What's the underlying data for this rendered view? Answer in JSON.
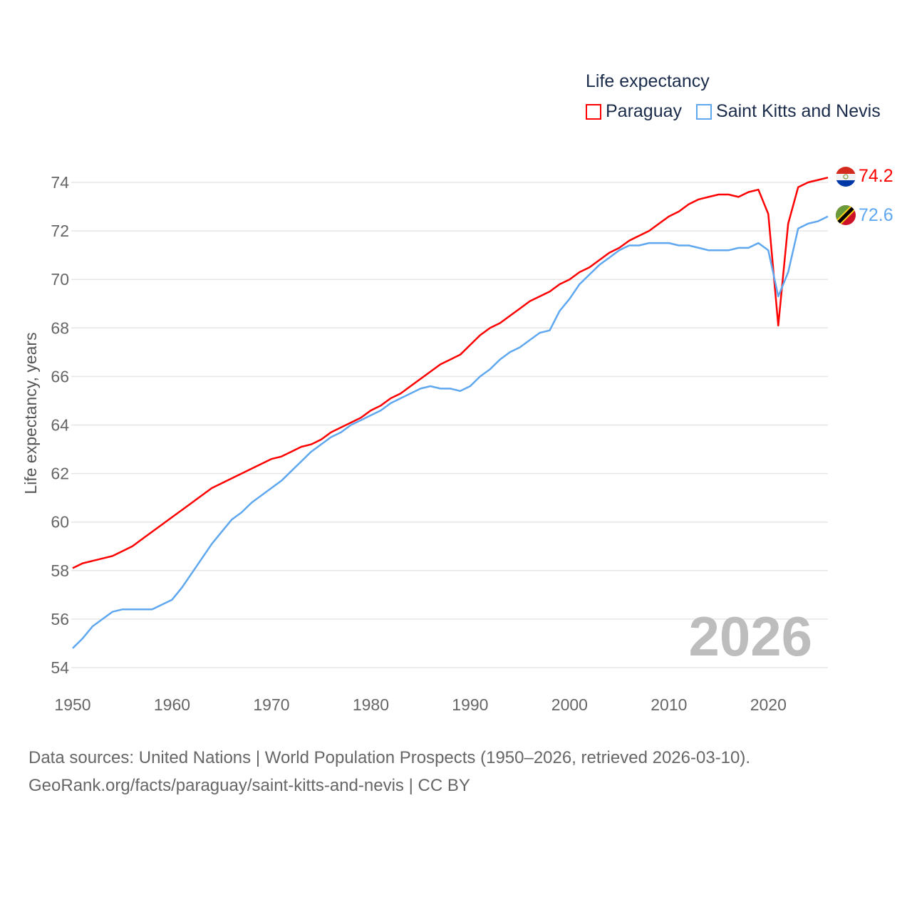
{
  "chart_data": {
    "type": "line",
    "title": "Life expectancy",
    "ylabel": "Life expectancy, years",
    "xlabel": "",
    "xlim": [
      1950,
      2026
    ],
    "ylim": [
      54,
      74
    ],
    "x_ticks": [
      1950,
      1960,
      1970,
      1980,
      1990,
      2000,
      2010,
      2020
    ],
    "y_ticks": [
      54,
      56,
      58,
      60,
      62,
      64,
      66,
      68,
      70,
      72,
      74
    ],
    "grid": true,
    "legend_position": "top-right",
    "year_watermark": "2026",
    "x_start": 1950,
    "series": [
      {
        "name": "Paraguay",
        "color": "#ff0000",
        "end_label": "74.2",
        "values": [
          58.1,
          58.3,
          58.4,
          58.5,
          58.6,
          58.8,
          59.0,
          59.3,
          59.6,
          59.9,
          60.2,
          60.5,
          60.8,
          61.1,
          61.4,
          61.6,
          61.8,
          62.0,
          62.2,
          62.4,
          62.6,
          62.7,
          62.9,
          63.1,
          63.2,
          63.4,
          63.7,
          63.9,
          64.1,
          64.3,
          64.6,
          64.8,
          65.1,
          65.3,
          65.6,
          65.9,
          66.2,
          66.5,
          66.7,
          66.9,
          67.3,
          67.7,
          68.0,
          68.2,
          68.5,
          68.8,
          69.1,
          69.3,
          69.5,
          69.8,
          70.0,
          70.3,
          70.5,
          70.8,
          71.1,
          71.3,
          71.6,
          71.8,
          72.0,
          72.3,
          72.6,
          72.8,
          73.1,
          73.3,
          73.4,
          73.5,
          73.5,
          73.4,
          73.6,
          73.7,
          72.7,
          68.1,
          72.3,
          73.8,
          74.0,
          74.1,
          74.2
        ]
      },
      {
        "name": "Saint Kitts and Nevis",
        "color": "#5fa8f0",
        "end_label": "72.6",
        "values": [
          54.8,
          55.2,
          55.7,
          56.0,
          56.3,
          56.4,
          56.4,
          56.4,
          56.4,
          56.6,
          56.8,
          57.3,
          57.9,
          58.5,
          59.1,
          59.6,
          60.1,
          60.4,
          60.8,
          61.1,
          61.4,
          61.7,
          62.1,
          62.5,
          62.9,
          63.2,
          63.5,
          63.7,
          64.0,
          64.2,
          64.4,
          64.6,
          64.9,
          65.1,
          65.3,
          65.5,
          65.6,
          65.5,
          65.5,
          65.4,
          65.6,
          66.0,
          66.3,
          66.7,
          67.0,
          67.2,
          67.5,
          67.8,
          67.9,
          68.7,
          69.2,
          69.8,
          70.2,
          70.6,
          70.9,
          71.2,
          71.4,
          71.4,
          71.5,
          71.5,
          71.5,
          71.4,
          71.4,
          71.3,
          71.2,
          71.2,
          71.2,
          71.3,
          71.3,
          71.5,
          71.2,
          69.3,
          70.3,
          72.1,
          72.3,
          72.4,
          72.6
        ]
      }
    ]
  },
  "footer": {
    "line1": "Data sources: United Nations | World Population Prospects (1950–2026, retrieved 2026-03-10).",
    "line2": "GeoRank.org/facts/paraguay/saint-kitts-and-nevis | CC BY"
  }
}
